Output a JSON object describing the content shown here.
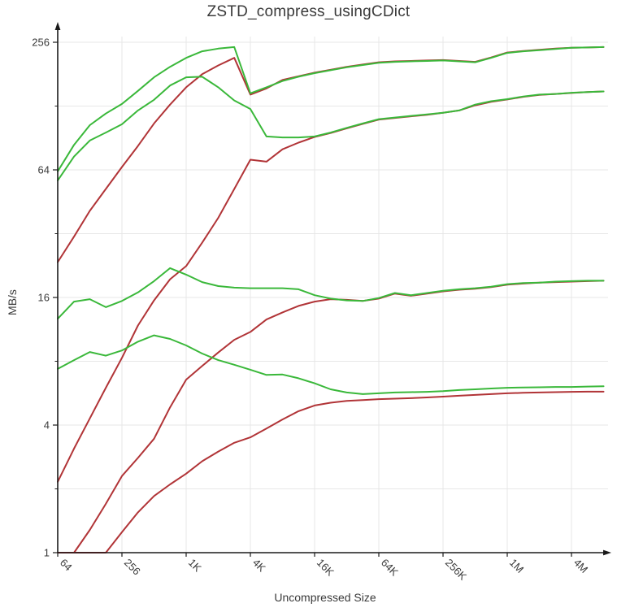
{
  "chart_data": {
    "type": "line",
    "title": "ZSTD_compress_usingCDict",
    "xlabel": "Uncompressed Size",
    "ylabel": "MB/s",
    "x_scale": "log2",
    "y_scale": "log2",
    "grid": true,
    "legend": "none",
    "x_range": [
      64,
      8388608
    ],
    "y_range": [
      1,
      256
    ],
    "colors": {
      "green": "#3ab83a",
      "red": "#b13437",
      "grid": "#e7e7e7",
      "axis": "#1a1a1a",
      "text": "#3a3a3a"
    },
    "x_ticks": [
      {
        "label": "64",
        "size": 64
      },
      {
        "label": "256",
        "size": 256
      },
      {
        "label": "1K",
        "size": 1024
      },
      {
        "label": "4K",
        "size": 4096
      },
      {
        "label": "16K",
        "size": 16384
      },
      {
        "label": "64K",
        "size": 65536
      },
      {
        "label": "256K",
        "size": 262144
      },
      {
        "label": "1M",
        "size": 1048576
      },
      {
        "label": "4M",
        "size": 4194304
      }
    ],
    "y_ticks": [
      {
        "label": "256",
        "value": 256
      },
      {
        "label": "64",
        "value": 64
      },
      {
        "label": "16",
        "value": 16
      },
      {
        "label": "4",
        "value": 4
      },
      {
        "label": "1",
        "value": 1
      }
    ],
    "y_minor_ticks": [
      2,
      8,
      32,
      128
    ],
    "sizes": [
      64,
      91,
      128,
      181,
      256,
      362,
      512,
      724,
      1024,
      1448,
      2048,
      2896,
      4096,
      5793,
      8192,
      11585,
      16384,
      23170,
      32768,
      46341,
      65536,
      92682,
      131072,
      185364,
      262144,
      370728,
      524288,
      741455,
      1048576,
      1482910,
      2097152,
      2965821,
      4194304,
      5931642,
      8388608
    ],
    "series": [
      {
        "name": "red-top",
        "color": "#b13437",
        "values": [
          23.5,
          31,
          41,
          52,
          66,
          83,
          106,
          130,
          157,
          181,
          199,
          216,
          145,
          155,
          170,
          177,
          184,
          190,
          196,
          201,
          206,
          208,
          209,
          210,
          211,
          209,
          207,
          217,
          229,
          233,
          236,
          239,
          241,
          242,
          243
        ]
      },
      {
        "name": "red-upper-mid",
        "color": "#b13437",
        "values": [
          2.16,
          3.1,
          4.3,
          6.0,
          8.3,
          11.8,
          15.5,
          19.5,
          22.5,
          29,
          38,
          52,
          71.5,
          70,
          80,
          86,
          91.5,
          95.5,
          100.5,
          105.5,
          110.5,
          112.5,
          114.5,
          116.5,
          119,
          122,
          129,
          134,
          137.5,
          141.5,
          144.5,
          146,
          147.5,
          149,
          150
        ]
      },
      {
        "name": "red-mid",
        "color": "#b13437",
        "values": [
          1,
          1,
          1.28,
          1.7,
          2.3,
          2.8,
          3.45,
          4.85,
          6.55,
          7.6,
          8.8,
          10.1,
          11.0,
          12.6,
          13.6,
          14.6,
          15.3,
          15.7,
          15.6,
          15.4,
          15.8,
          16.7,
          16.3,
          16.7,
          17.1,
          17.4,
          17.6,
          17.9,
          18.4,
          18.6,
          18.8,
          18.9,
          19.0,
          19.1,
          19.2
        ]
      },
      {
        "name": "red-bottom",
        "color": "#b13437",
        "values": [
          1,
          1,
          1,
          1,
          1.25,
          1.55,
          1.85,
          2.1,
          2.36,
          2.7,
          3.0,
          3.3,
          3.5,
          3.85,
          4.25,
          4.65,
          4.95,
          5.1,
          5.2,
          5.25,
          5.3,
          5.33,
          5.36,
          5.4,
          5.45,
          5.5,
          5.55,
          5.6,
          5.65,
          5.68,
          5.7,
          5.72,
          5.74,
          5.75,
          5.75
        ]
      },
      {
        "name": "green-top",
        "color": "#3ab83a",
        "values": [
          63,
          84,
          104,
          118,
          131,
          151,
          175,
          196,
          216,
          232,
          239,
          243,
          147,
          157,
          168,
          176,
          183,
          189,
          195,
          200,
          205,
          207,
          208,
          209,
          210,
          208,
          206,
          216,
          228,
          232,
          235,
          238,
          241,
          242,
          243
        ]
      },
      {
        "name": "green-upper-mid",
        "color": "#3ab83a",
        "values": [
          57,
          74,
          88,
          96,
          105,
          122,
          137,
          160,
          175,
          176,
          157,
          136,
          124,
          92,
          91,
          91,
          92,
          96,
          101,
          106,
          111,
          113,
          115,
          117,
          119,
          122,
          130,
          135,
          138,
          142,
          145,
          146,
          148,
          149,
          150
        ]
      },
      {
        "name": "green-mid",
        "color": "#3ab83a",
        "values": [
          12.7,
          15.3,
          15.7,
          14.4,
          15.4,
          16.9,
          19.1,
          22.0,
          20.5,
          18.9,
          18.1,
          17.8,
          17.7,
          17.7,
          17.7,
          17.5,
          16.4,
          15.8,
          15.5,
          15.4,
          15.9,
          16.8,
          16.4,
          16.8,
          17.2,
          17.5,
          17.7,
          18.0,
          18.5,
          18.7,
          18.8,
          19.0,
          19.1,
          19.2,
          19.2
        ]
      },
      {
        "name": "green-bottom",
        "color": "#3ab83a",
        "values": [
          7.36,
          8.1,
          8.85,
          8.5,
          9.0,
          9.9,
          10.6,
          10.2,
          9.5,
          8.7,
          8.1,
          7.7,
          7.3,
          6.9,
          6.93,
          6.65,
          6.3,
          5.9,
          5.7,
          5.6,
          5.65,
          5.7,
          5.72,
          5.74,
          5.78,
          5.85,
          5.9,
          5.95,
          6.0,
          6.02,
          6.03,
          6.05,
          6.05,
          6.08,
          6.1
        ]
      }
    ]
  }
}
